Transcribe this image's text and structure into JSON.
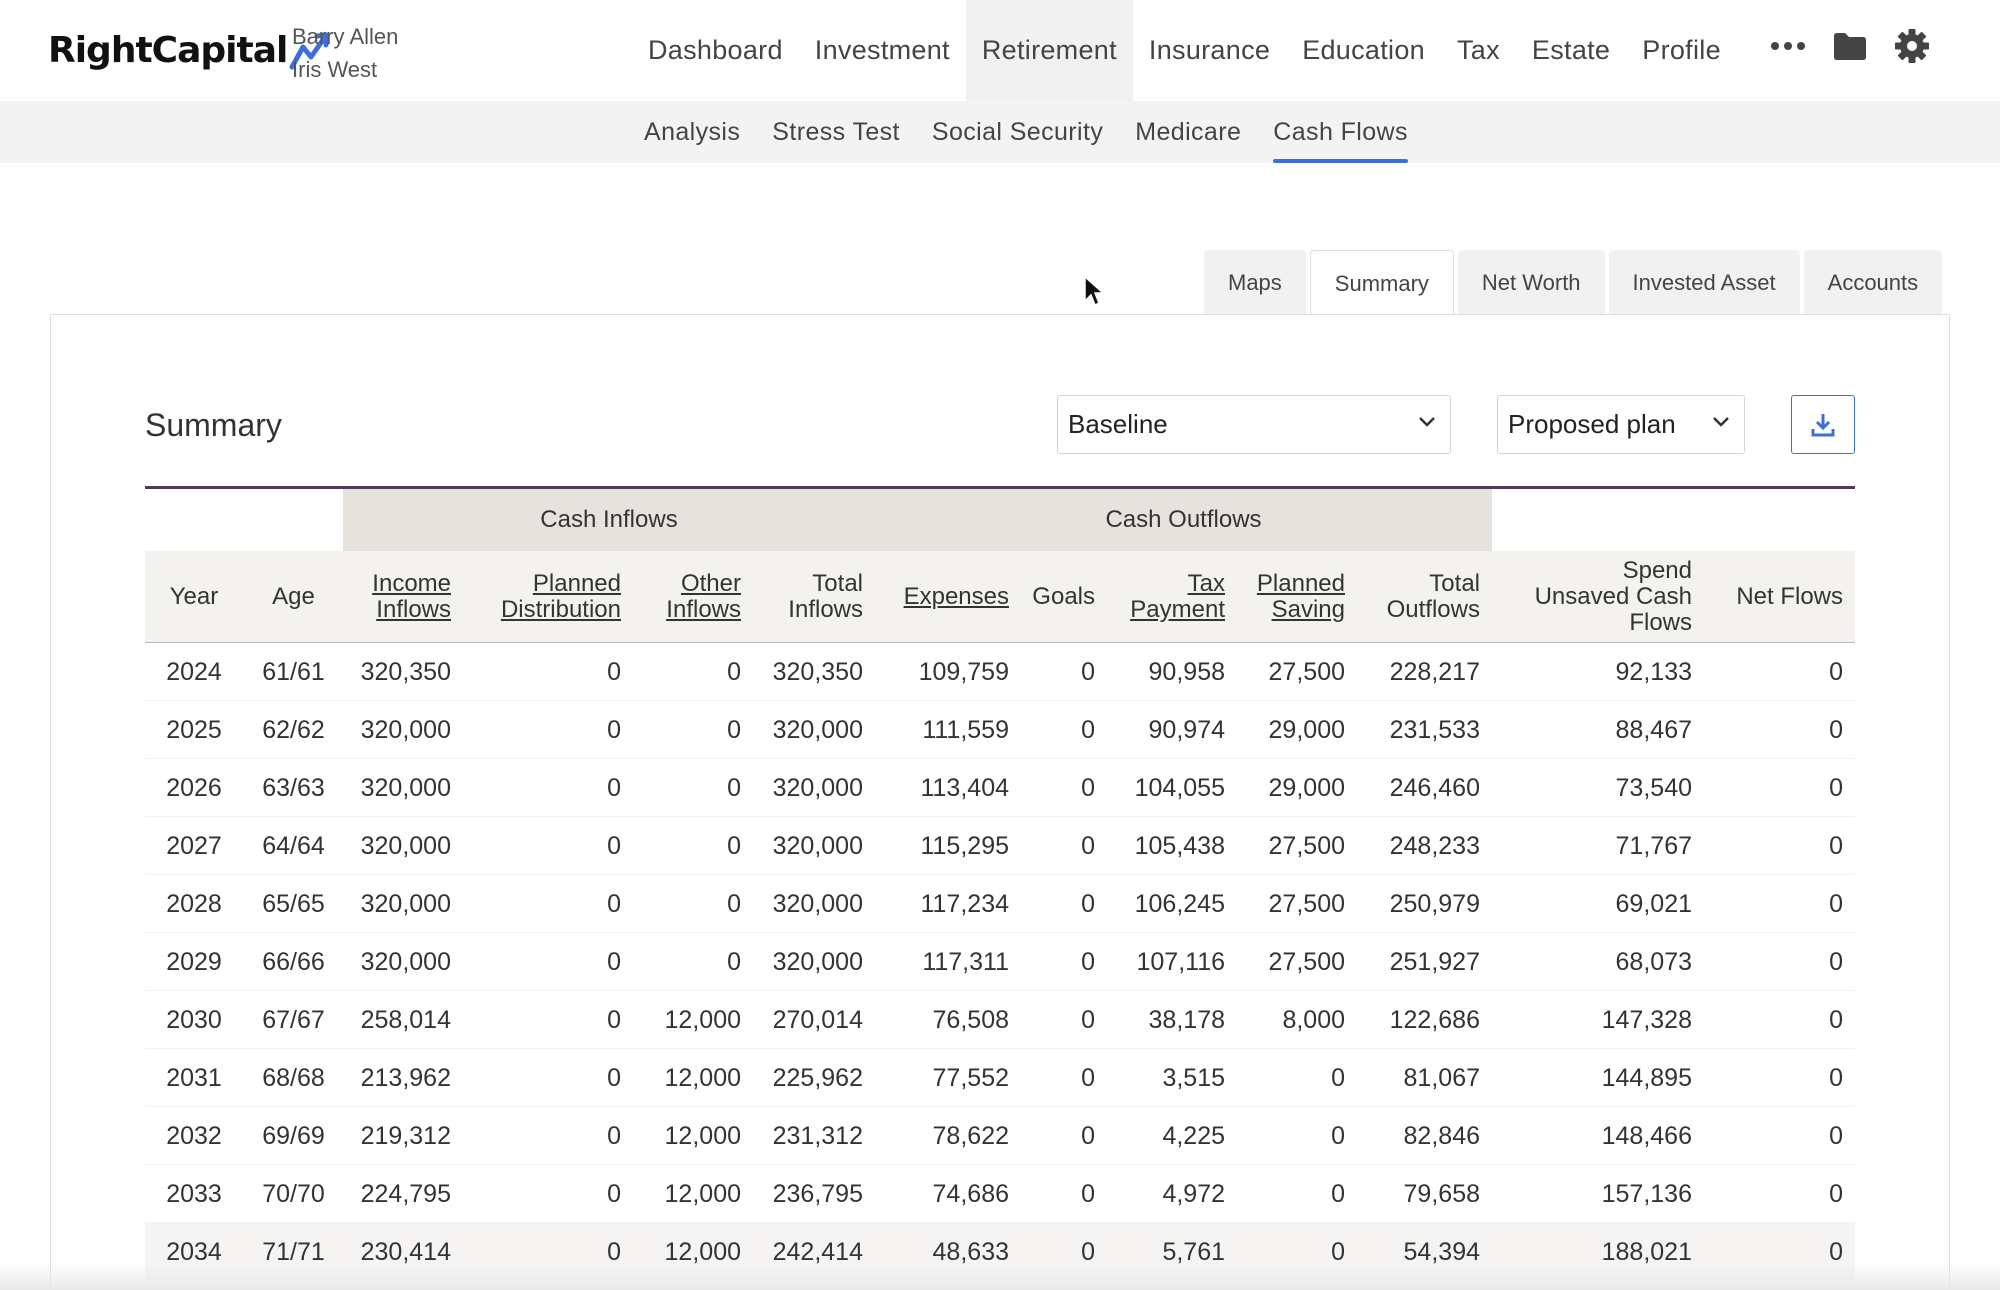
{
  "brand": {
    "name": "RightCapital",
    "accent": "#3d6fdc"
  },
  "clients": {
    "primary": "Barry Allen",
    "spouse": "Iris West"
  },
  "main_nav": [
    "Dashboard",
    "Investment",
    "Retirement",
    "Insurance",
    "Education",
    "Tax",
    "Estate",
    "Profile"
  ],
  "main_nav_active": "Retirement",
  "icons": [
    "more-icon",
    "folder-icon",
    "gear-icon"
  ],
  "sub_nav": [
    "Analysis",
    "Stress Test",
    "Social Security",
    "Medicare",
    "Cash Flows"
  ],
  "sub_nav_active": "Cash Flows",
  "tabs": [
    "Maps",
    "Summary",
    "Net Worth",
    "Invested Asset",
    "Accounts"
  ],
  "tabs_active": "Summary",
  "panel": {
    "title": "Summary",
    "scenario_select": "Baseline",
    "plan_select": "Proposed plan",
    "download_icon": "download-icon"
  },
  "table": {
    "groups": {
      "inflows": "Cash Inflows",
      "outflows": "Cash Outflows"
    },
    "headers": [
      [
        "Year"
      ],
      [
        "Age"
      ],
      [
        "Income",
        "Inflows"
      ],
      [
        "Planned",
        "Distribution"
      ],
      [
        "Other",
        "Inflows"
      ],
      [
        "Total",
        "Inflows"
      ],
      [
        "Expenses"
      ],
      [
        "Goals"
      ],
      [
        "Tax",
        "Payment"
      ],
      [
        "Planned",
        "Saving"
      ],
      [
        "Total",
        "Outflows"
      ],
      [
        "Spend",
        "Unsaved Cash",
        "Flows"
      ],
      [
        "Net Flows"
      ]
    ],
    "rows": [
      [
        "2024",
        "61/61",
        "320,350",
        "0",
        "0",
        "320,350",
        "109,759",
        "0",
        "90,958",
        "27,500",
        "228,217",
        "92,133",
        "0"
      ],
      [
        "2025",
        "62/62",
        "320,000",
        "0",
        "0",
        "320,000",
        "111,559",
        "0",
        "90,974",
        "29,000",
        "231,533",
        "88,467",
        "0"
      ],
      [
        "2026",
        "63/63",
        "320,000",
        "0",
        "0",
        "320,000",
        "113,404",
        "0",
        "104,055",
        "29,000",
        "246,460",
        "73,540",
        "0"
      ],
      [
        "2027",
        "64/64",
        "320,000",
        "0",
        "0",
        "320,000",
        "115,295",
        "0",
        "105,438",
        "27,500",
        "248,233",
        "71,767",
        "0"
      ],
      [
        "2028",
        "65/65",
        "320,000",
        "0",
        "0",
        "320,000",
        "117,234",
        "0",
        "106,245",
        "27,500",
        "250,979",
        "69,021",
        "0"
      ],
      [
        "2029",
        "66/66",
        "320,000",
        "0",
        "0",
        "320,000",
        "117,311",
        "0",
        "107,116",
        "27,500",
        "251,927",
        "68,073",
        "0"
      ],
      [
        "2030",
        "67/67",
        "258,014",
        "0",
        "12,000",
        "270,014",
        "76,508",
        "0",
        "38,178",
        "8,000",
        "122,686",
        "147,328",
        "0"
      ],
      [
        "2031",
        "68/68",
        "213,962",
        "0",
        "12,000",
        "225,962",
        "77,552",
        "0",
        "3,515",
        "0",
        "81,067",
        "144,895",
        "0"
      ],
      [
        "2032",
        "69/69",
        "219,312",
        "0",
        "12,000",
        "231,312",
        "78,622",
        "0",
        "4,225",
        "0",
        "82,846",
        "148,466",
        "0"
      ],
      [
        "2033",
        "70/70",
        "224,795",
        "0",
        "12,000",
        "236,795",
        "74,686",
        "0",
        "4,972",
        "0",
        "79,658",
        "157,136",
        "0"
      ],
      [
        "2034",
        "71/71",
        "230,414",
        "0",
        "12,000",
        "242,414",
        "48,633",
        "0",
        "5,761",
        "0",
        "54,394",
        "188,021",
        "0"
      ]
    ]
  }
}
